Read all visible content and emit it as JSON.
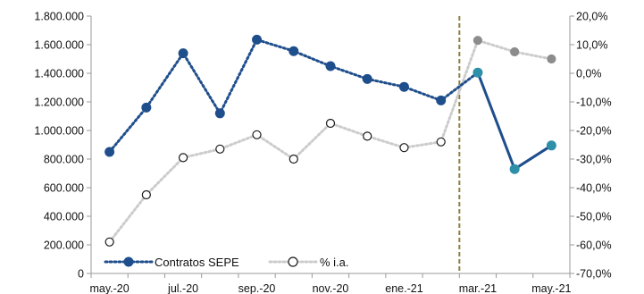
{
  "chart_data": {
    "type": "line",
    "title": "",
    "xlabel": "",
    "ylabel": "",
    "y2label": "",
    "x": [
      "may.-20",
      "jun.-20",
      "jul.-20",
      "ago.-20",
      "sep.-20",
      "oct.-20",
      "nov.-20",
      "dic.-20",
      "ene.-21",
      "feb.-21",
      "mar.-21",
      "abr.-21",
      "may.-21"
    ],
    "x_tick_labels": [
      "may.-20",
      "jul.-20",
      "sep.-20",
      "nov.-20",
      "ene.-21",
      "mar.-21",
      "may.-21"
    ],
    "ylim": [
      0,
      1800000
    ],
    "y_tick_labels": [
      "0",
      "200.000",
      "400.000",
      "600.000",
      "800.000",
      "1.000.000",
      "1.200.000",
      "1.400.000",
      "1.600.000",
      "1.800.000"
    ],
    "y2lim": [
      -70,
      20
    ],
    "y2_tick_labels": [
      "-70,0%",
      "-60,0%",
      "-50,0%",
      "-40,0%",
      "-30,0%",
      "-20,0%",
      "-10,0%",
      "0,0%",
      "10,0%",
      "20,0%"
    ],
    "grid": false,
    "vertical_marker_between": [
      "feb.-21",
      "mar.-21"
    ],
    "series": [
      {
        "name": "Contratos SEPE",
        "axis": "left",
        "color": "#1f4e8c",
        "highlight_color": "#2e8fa8",
        "highlight_from_index": 10,
        "values": [
          850000,
          1160000,
          1540000,
          1120000,
          1635000,
          1555000,
          1450000,
          1360000,
          1305000,
          1210000,
          1405000,
          730000,
          895000
        ]
      },
      {
        "name": "% i.a.",
        "axis": "right",
        "color": "#cccccc",
        "marker_edge": "#1a1a1a",
        "highlight_color": "#8c8c8c",
        "highlight_from_index": 10,
        "values": [
          -59.0,
          -42.5,
          -29.5,
          -26.5,
          -21.5,
          -30.0,
          -17.5,
          -22.0,
          -26.0,
          -24.0,
          11.5,
          7.5,
          5.0
        ]
      }
    ],
    "legend_placement": "bottom-left"
  }
}
